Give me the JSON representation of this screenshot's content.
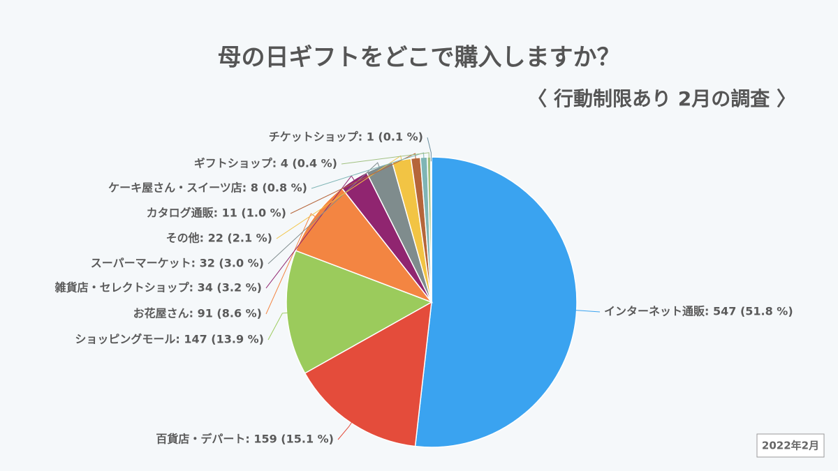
{
  "chart_data": {
    "type": "pie",
    "title": "母の日ギフトをどこで購入しますか？",
    "subtitle": "〈 行動制限あり 2月の調査 〉",
    "note": "2022年2月",
    "values": [
      547,
      159,
      147,
      91,
      34,
      32,
      22,
      11,
      8,
      4,
      1
    ],
    "value_labels": [
      "インターネット通販: 547 (51.8 %)",
      "百貨店・デパート: 159 (15.1 %)",
      "ショッピングモール: 147 (13.9 %)",
      "お花屋さん: 91 (8.6 %)",
      "雑貨店・セレクトショップ: 34 (3.2 %)",
      "スーパーマーケット: 32 (3.0 %)",
      "その他: 22 (2.1 %)",
      "カタログ通販: 11 (1.0 %)",
      "ケーキ屋さん・スイーツ店: 8 (0.8 %)",
      "ギフトショップ: 4 (0.4 %)",
      "チケットショップ: 1 (0.1 %)"
    ],
    "colors": [
      "#3aa3f0",
      "#e44c3b",
      "#9bcb5c",
      "#f38542",
      "#902570",
      "#7f8c8d",
      "#f2c444",
      "#b5653a",
      "#7fb5b5",
      "#a0c080",
      "#6a8e9e"
    ]
  }
}
